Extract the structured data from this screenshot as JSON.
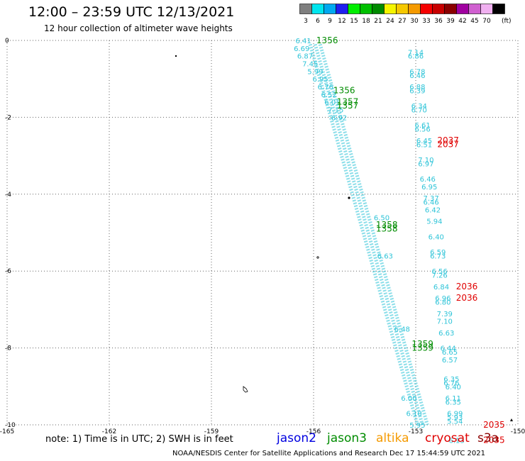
{
  "header": {
    "title": "12:00 – 23:59 UTC 12/13/2021",
    "subtitle": "12 hour collection of altimeter wave heights"
  },
  "color_scale": {
    "unit_label": "(ft)",
    "bins": [
      {
        "label": "3",
        "color": "#7f7f7f"
      },
      {
        "label": "6",
        "color": "#00e5ee"
      },
      {
        "label": "9",
        "color": "#00a8f0"
      },
      {
        "label": "12",
        "color": "#1f1fef"
      },
      {
        "label": "15",
        "color": "#00ee00"
      },
      {
        "label": "18",
        "color": "#00c000"
      },
      {
        "label": "21",
        "color": "#008a00"
      },
      {
        "label": "24",
        "color": "#f5f500"
      },
      {
        "label": "27",
        "color": "#f5c800"
      },
      {
        "label": "30",
        "color": "#f59a00"
      },
      {
        "label": "33",
        "color": "#f50000"
      },
      {
        "label": "36",
        "color": "#c80000"
      },
      {
        "label": "39",
        "color": "#8a0000"
      },
      {
        "label": "42",
        "color": "#a000a0"
      },
      {
        "label": "45",
        "color": "#d060d0"
      },
      {
        "label": "70",
        "color": "#f0b0f0"
      },
      {
        "label": "",
        "color": "#000000"
      }
    ]
  },
  "colors": {
    "swh_low": "#2ec4d8",
    "time_jason3": "#008c00",
    "time_cryosat": "#e00000"
  },
  "chart_data": {
    "type": "scatter",
    "xlim": [
      -165,
      -150
    ],
    "ylim": [
      -10,
      0
    ],
    "x_ticks": [
      -165,
      -162,
      -159,
      -156,
      -153,
      -150
    ],
    "y_ticks": [
      0,
      -2,
      -4,
      -6,
      -8,
      -10
    ],
    "grid": true,
    "series": [
      {
        "name": "jason3",
        "points": [
          {
            "x": -156.3,
            "y": 0.0,
            "label": "6.41"
          },
          {
            "x": -156.35,
            "y": -0.2,
            "label": "6.69"
          },
          {
            "x": -156.25,
            "y": -0.4,
            "label": "6.87"
          },
          {
            "x": -156.1,
            "y": -0.6,
            "label": "7.45"
          },
          {
            "x": -155.95,
            "y": -0.8,
            "label": "5.99"
          },
          {
            "x": -155.8,
            "y": -1.0,
            "label": "6.95"
          },
          {
            "x": -155.65,
            "y": -1.2,
            "label": "6.76"
          },
          {
            "x": -155.55,
            "y": -1.4,
            "label": "6.52"
          },
          {
            "x": -155.45,
            "y": -1.6,
            "label": "6.01"
          },
          {
            "x": -155.35,
            "y": -1.8,
            "label": "7.15"
          },
          {
            "x": -155.25,
            "y": -2.0,
            "label": "6.92"
          },
          {
            "x": -154.0,
            "y": -4.6,
            "label": "6.50"
          },
          {
            "x": -153.9,
            "y": -5.6,
            "label": "6.63"
          },
          {
            "x": -153.4,
            "y": -7.5,
            "label": "6.48"
          },
          {
            "x": -153.2,
            "y": -9.3,
            "label": "6.00"
          },
          {
            "x": -153.05,
            "y": -9.7,
            "label": "6.10"
          },
          {
            "x": -152.95,
            "y": -10.0,
            "label": "5.95"
          }
        ]
      },
      {
        "name": "cryosat",
        "points": [
          {
            "x": -153.0,
            "y": -0.3,
            "label": "7.14"
          },
          {
            "x": -153.0,
            "y": -0.4,
            "label": "6.86"
          },
          {
            "x": -152.95,
            "y": -0.8,
            "label": "6.78"
          },
          {
            "x": -152.95,
            "y": -0.9,
            "label": "6.46"
          },
          {
            "x": -152.95,
            "y": -1.2,
            "label": "6.88"
          },
          {
            "x": -152.95,
            "y": -1.3,
            "label": "6.39"
          },
          {
            "x": -152.9,
            "y": -1.7,
            "label": "6.34"
          },
          {
            "x": -152.9,
            "y": -1.8,
            "label": "6.70"
          },
          {
            "x": -152.8,
            "y": -2.2,
            "label": "6.61"
          },
          {
            "x": -152.8,
            "y": -2.3,
            "label": "6.56"
          },
          {
            "x": -152.75,
            "y": -2.6,
            "label": "6.45"
          },
          {
            "x": -152.75,
            "y": -2.7,
            "label": "6.51"
          },
          {
            "x": -152.7,
            "y": -3.1,
            "label": "7.10"
          },
          {
            "x": -152.7,
            "y": -3.2,
            "label": "6.97"
          },
          {
            "x": -152.65,
            "y": -3.6,
            "label": "6.46"
          },
          {
            "x": -152.6,
            "y": -3.8,
            "label": "6.95"
          },
          {
            "x": -152.55,
            "y": -4.1,
            "label": "7.37"
          },
          {
            "x": -152.55,
            "y": -4.2,
            "label": "6.46"
          },
          {
            "x": -152.5,
            "y": -4.4,
            "label": "6.42"
          },
          {
            "x": -152.45,
            "y": -4.7,
            "label": "5.94"
          },
          {
            "x": -152.4,
            "y": -5.1,
            "label": "6.40"
          },
          {
            "x": -152.35,
            "y": -5.5,
            "label": "6.59"
          },
          {
            "x": -152.35,
            "y": -5.6,
            "label": "6.73"
          },
          {
            "x": -152.3,
            "y": -6.0,
            "label": "6.56"
          },
          {
            "x": -152.3,
            "y": -6.1,
            "label": "7.26"
          },
          {
            "x": -152.25,
            "y": -6.4,
            "label": "6.84"
          },
          {
            "x": -152.2,
            "y": -6.7,
            "label": "6.96"
          },
          {
            "x": -152.2,
            "y": -6.8,
            "label": "6.80"
          },
          {
            "x": -152.15,
            "y": -7.1,
            "label": "7.39"
          },
          {
            "x": -152.15,
            "y": -7.3,
            "label": "7.10"
          },
          {
            "x": -152.1,
            "y": -7.6,
            "label": "6.63"
          },
          {
            "x": -152.05,
            "y": -8.0,
            "label": "6.44"
          },
          {
            "x": -152.0,
            "y": -8.1,
            "label": "6.65"
          },
          {
            "x": -152.0,
            "y": -8.3,
            "label": "6.57"
          },
          {
            "x": -151.95,
            "y": -8.8,
            "label": "6.35"
          },
          {
            "x": -151.95,
            "y": -8.9,
            "label": "6.76"
          },
          {
            "x": -151.9,
            "y": -9.0,
            "label": "6.40"
          },
          {
            "x": -151.9,
            "y": -9.3,
            "label": "6.11"
          },
          {
            "x": -151.9,
            "y": -9.4,
            "label": "6.35"
          },
          {
            "x": -151.85,
            "y": -9.7,
            "label": "6.99"
          },
          {
            "x": -151.85,
            "y": -9.8,
            "label": "5.93"
          },
          {
            "x": -151.85,
            "y": -9.9,
            "label": "5.54"
          },
          {
            "x": -151.8,
            "y": -10.4,
            "label": "6.13"
          }
        ]
      }
    ],
    "time_labels": [
      {
        "x": -155.6,
        "y": 0.0,
        "label": "1356",
        "satellite": "jason3"
      },
      {
        "x": -155.1,
        "y": -1.3,
        "label": "1356",
        "satellite": "jason3"
      },
      {
        "x": -155.0,
        "y": -1.6,
        "label": "1357",
        "satellite": "jason3"
      },
      {
        "x": -155.0,
        "y": -1.7,
        "label": "1357",
        "satellite": "jason3"
      },
      {
        "x": -153.85,
        "y": -4.8,
        "label": "1358",
        "satellite": "jason3"
      },
      {
        "x": -153.85,
        "y": -4.9,
        "label": "1358",
        "satellite": "jason3"
      },
      {
        "x": -152.8,
        "y": -7.9,
        "label": "1359",
        "satellite": "jason3"
      },
      {
        "x": -152.8,
        "y": -8.0,
        "label": "1359",
        "satellite": "jason3"
      },
      {
        "x": -152.05,
        "y": -2.6,
        "label": "2037",
        "satellite": "cryosat"
      },
      {
        "x": -152.05,
        "y": -2.7,
        "label": "2037",
        "satellite": "cryosat"
      },
      {
        "x": -151.5,
        "y": -6.4,
        "label": "2036",
        "satellite": "cryosat"
      },
      {
        "x": -151.5,
        "y": -6.7,
        "label": "2036",
        "satellite": "cryosat"
      },
      {
        "x": -150.7,
        "y": -10.0,
        "label": "2035",
        "satellite": "cryosat"
      },
      {
        "x": -150.7,
        "y": -10.4,
        "label": "2035",
        "satellite": "cryosat"
      }
    ]
  },
  "note": "note:  1) Time is in UTC;  2) SWH is in feet",
  "legend": [
    {
      "label": "jason2",
      "color": "#0000e0"
    },
    {
      "label": "jason3",
      "color": "#008c00"
    },
    {
      "label": "altika",
      "color": "#f59a00"
    },
    {
      "label": "cryosat",
      "color": "#e00000"
    },
    {
      "label": "s3a",
      "color": "#8a0000"
    }
  ],
  "footer": "NOAA/NESDIS Center for Satellite Applications and Research     Dec 17 15:44:59 UTC 2021"
}
